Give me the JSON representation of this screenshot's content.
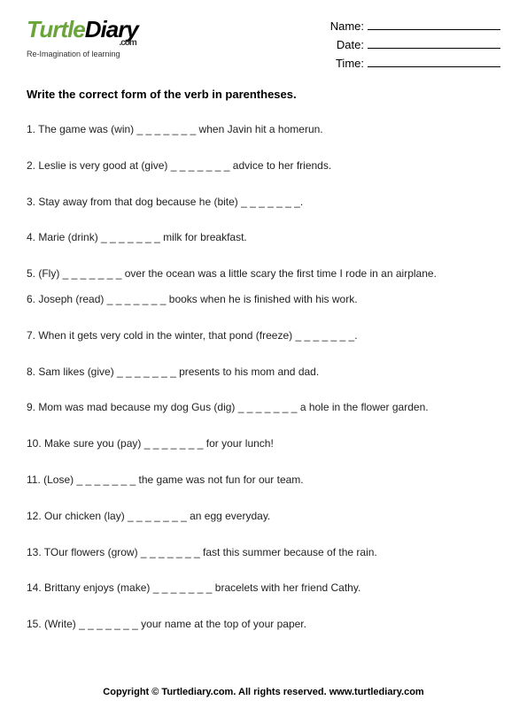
{
  "logo": {
    "word1": "Turtle",
    "word2": "Diary",
    "dotcom": ".com",
    "tagline": "Re-Imagination of learning"
  },
  "meta": {
    "name_label": "Name:",
    "date_label": "Date:",
    "time_label": "Time:"
  },
  "instruction": "Write the correct form of the verb in parentheses.",
  "blank": "_ _ _ _ _ _ _",
  "questions": [
    "1. The game was (win) _ _ _ _ _ _ _ when Javin hit a homerun.",
    "2. Leslie is very good at (give) _ _ _ _ _ _ _ advice to her friends.",
    "3. Stay away from that dog because he (bite) _ _ _ _ _ _ _.",
    "4. Marie (drink) _ _ _ _ _ _ _ milk for breakfast.",
    "5. (Fly) _ _ _ _ _ _ _ over the ocean was a little scary the first time I rode in an airplane.",
    "6. Joseph (read) _ _ _ _ _ _ _ books when he is finished with his work.",
    "7. When it gets very cold in the winter, that pond (freeze) _ _ _ _ _ _ _.",
    "8. Sam likes (give) _ _ _ _ _ _ _ presents to his mom and dad.",
    "9. Mom was mad because my dog Gus (dig) _ _ _ _ _ _ _ a hole in the flower garden.",
    "10. Make sure you (pay) _ _ _ _ _ _ _ for your lunch!",
    "11.  (Lose) _ _ _ _ _ _ _ the game was not fun for our team.",
    "12. Our chicken (lay) _ _ _ _ _ _ _ an egg everyday.",
    "13. TOur flowers (grow) _ _ _ _ _ _ _ fast this summer because of the rain.",
    "14. Brittany enjoys (make) _ _ _ _ _ _ _ bracelets with her friend Cathy.",
    "15. (Write) _ _ _ _ _ _ _ your name at the top of your paper."
  ],
  "footer": "Copyright © Turtlediary.com. All rights reserved.   www.turtlediary.com"
}
